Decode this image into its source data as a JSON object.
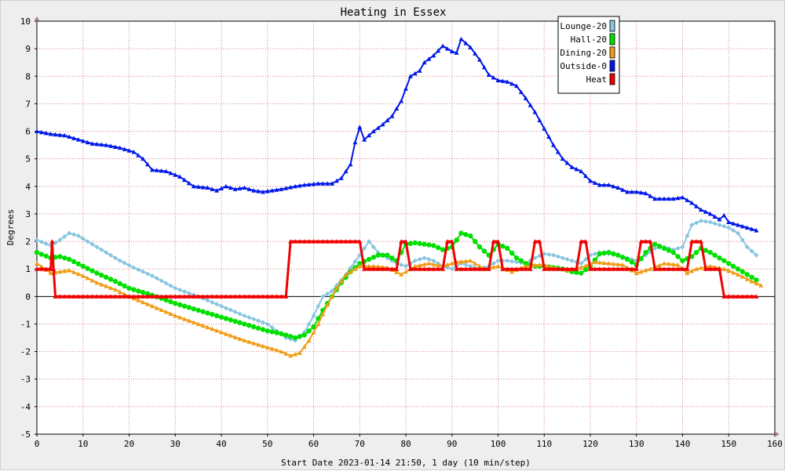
{
  "chart_data": {
    "type": "line",
    "title": "Heating in Essex",
    "xlabel": "Start Date 2023-01-14 21:50, 1 day (10 min/step)",
    "ylabel": "Degrees",
    "xlim": [
      0,
      160
    ],
    "ylim": [
      -5,
      10
    ],
    "x_ticks": [
      0,
      10,
      20,
      30,
      40,
      50,
      60,
      70,
      80,
      90,
      100,
      110,
      120,
      130,
      140,
      150,
      160
    ],
    "y_ticks": [
      -5,
      -4,
      -3,
      -2,
      -1,
      0,
      1,
      2,
      3,
      4,
      5,
      6,
      7,
      8,
      9,
      10
    ],
    "grid": true,
    "legend_position": "top-right",
    "series": [
      {
        "name": "Lounge-20",
        "color": "#87c5e0",
        "marker": "diamond",
        "points": [
          [
            0,
            2.05
          ],
          [
            3,
            1.85
          ],
          [
            5,
            2.05
          ],
          [
            7,
            2.3
          ],
          [
            9,
            2.2
          ],
          [
            12,
            1.9
          ],
          [
            15,
            1.6
          ],
          [
            18,
            1.3
          ],
          [
            21,
            1.05
          ],
          [
            25,
            0.75
          ],
          [
            30,
            0.3
          ],
          [
            35,
            0.0
          ],
          [
            40,
            -0.35
          ],
          [
            45,
            -0.7
          ],
          [
            50,
            -1.0
          ],
          [
            54,
            -1.5
          ],
          [
            56,
            -1.6
          ],
          [
            58,
            -1.3
          ],
          [
            60,
            -0.7
          ],
          [
            62,
            0.0
          ],
          [
            64,
            0.2
          ],
          [
            67,
            0.8
          ],
          [
            70,
            1.5
          ],
          [
            72,
            2.0
          ],
          [
            74,
            1.6
          ],
          [
            76,
            1.4
          ],
          [
            78,
            1.2
          ],
          [
            80,
            1.1
          ],
          [
            82,
            1.3
          ],
          [
            84,
            1.4
          ],
          [
            86,
            1.3
          ],
          [
            88,
            1.1
          ],
          [
            90,
            1.0
          ],
          [
            92,
            1.2
          ],
          [
            94,
            1.1
          ],
          [
            96,
            1.0
          ],
          [
            98,
            1.1
          ],
          [
            100,
            1.3
          ],
          [
            102,
            1.3
          ],
          [
            104,
            1.25
          ],
          [
            106,
            1.2
          ],
          [
            108,
            1.4
          ],
          [
            110,
            1.55
          ],
          [
            112,
            1.5
          ],
          [
            114,
            1.4
          ],
          [
            116,
            1.3
          ],
          [
            118,
            1.2
          ],
          [
            120,
            1.5
          ],
          [
            122,
            1.6
          ],
          [
            124,
            1.55
          ],
          [
            126,
            1.5
          ],
          [
            128,
            1.4
          ],
          [
            130,
            1.3
          ],
          [
            132,
            1.5
          ],
          [
            134,
            1.75
          ],
          [
            136,
            1.8
          ],
          [
            138,
            1.7
          ],
          [
            140,
            1.8
          ],
          [
            142,
            2.6
          ],
          [
            144,
            2.75
          ],
          [
            146,
            2.7
          ],
          [
            148,
            2.6
          ],
          [
            150,
            2.5
          ],
          [
            152,
            2.3
          ],
          [
            154,
            1.8
          ],
          [
            156,
            1.5
          ]
        ]
      },
      {
        "name": "Hall-20",
        "color": "#00e000",
        "marker": "circle",
        "points": [
          [
            0,
            1.6
          ],
          [
            3,
            1.4
          ],
          [
            5,
            1.45
          ],
          [
            7,
            1.35
          ],
          [
            10,
            1.1
          ],
          [
            13,
            0.85
          ],
          [
            17,
            0.55
          ],
          [
            20,
            0.3
          ],
          [
            25,
            0.05
          ],
          [
            30,
            -0.25
          ],
          [
            35,
            -0.5
          ],
          [
            40,
            -0.75
          ],
          [
            45,
            -1.0
          ],
          [
            50,
            -1.25
          ],
          [
            53,
            -1.35
          ],
          [
            56,
            -1.5
          ],
          [
            58,
            -1.4
          ],
          [
            60,
            -1.1
          ],
          [
            62,
            -0.5
          ],
          [
            64,
            0.0
          ],
          [
            66,
            0.5
          ],
          [
            68,
            0.9
          ],
          [
            70,
            1.2
          ],
          [
            72,
            1.35
          ],
          [
            74,
            1.5
          ],
          [
            76,
            1.5
          ],
          [
            78,
            1.3
          ],
          [
            80,
            1.9
          ],
          [
            82,
            1.95
          ],
          [
            84,
            1.9
          ],
          [
            86,
            1.85
          ],
          [
            88,
            1.7
          ],
          [
            90,
            1.8
          ],
          [
            92,
            2.3
          ],
          [
            94,
            2.2
          ],
          [
            96,
            1.8
          ],
          [
            98,
            1.5
          ],
          [
            100,
            1.9
          ],
          [
            102,
            1.75
          ],
          [
            104,
            1.4
          ],
          [
            106,
            1.2
          ],
          [
            108,
            1.1
          ],
          [
            110,
            1.1
          ],
          [
            112,
            1.05
          ],
          [
            114,
            1.0
          ],
          [
            116,
            0.9
          ],
          [
            118,
            0.85
          ],
          [
            120,
            1.1
          ],
          [
            122,
            1.55
          ],
          [
            124,
            1.6
          ],
          [
            126,
            1.5
          ],
          [
            128,
            1.35
          ],
          [
            130,
            1.15
          ],
          [
            132,
            1.6
          ],
          [
            134,
            1.9
          ],
          [
            136,
            1.75
          ],
          [
            138,
            1.6
          ],
          [
            140,
            1.3
          ],
          [
            142,
            1.45
          ],
          [
            144,
            1.75
          ],
          [
            146,
            1.6
          ],
          [
            148,
            1.4
          ],
          [
            150,
            1.2
          ],
          [
            152,
            1.0
          ],
          [
            154,
            0.8
          ],
          [
            156,
            0.6
          ]
        ]
      },
      {
        "name": "Dining-20",
        "color": "#f09c14",
        "marker": "triangle",
        "points": [
          [
            0,
            1.2
          ],
          [
            3,
            0.85
          ],
          [
            5,
            0.9
          ],
          [
            7,
            0.95
          ],
          [
            10,
            0.75
          ],
          [
            13,
            0.5
          ],
          [
            17,
            0.25
          ],
          [
            20,
            0.0
          ],
          [
            25,
            -0.35
          ],
          [
            30,
            -0.7
          ],
          [
            35,
            -1.0
          ],
          [
            40,
            -1.3
          ],
          [
            45,
            -1.6
          ],
          [
            50,
            -1.85
          ],
          [
            53,
            -2.0
          ],
          [
            55,
            -2.15
          ],
          [
            57,
            -2.05
          ],
          [
            59,
            -1.6
          ],
          [
            61,
            -1.0
          ],
          [
            63,
            -0.3
          ],
          [
            65,
            0.3
          ],
          [
            67,
            0.8
          ],
          [
            70,
            1.1
          ],
          [
            73,
            1.1
          ],
          [
            76,
            1.05
          ],
          [
            79,
            0.8
          ],
          [
            82,
            1.1
          ],
          [
            85,
            1.2
          ],
          [
            88,
            1.1
          ],
          [
            91,
            1.25
          ],
          [
            94,
            1.3
          ],
          [
            97,
            1.0
          ],
          [
            100,
            1.1
          ],
          [
            103,
            0.9
          ],
          [
            106,
            1.1
          ],
          [
            109,
            1.15
          ],
          [
            112,
            1.05
          ],
          [
            115,
            0.95
          ],
          [
            118,
            1.05
          ],
          [
            121,
            1.25
          ],
          [
            124,
            1.2
          ],
          [
            127,
            1.15
          ],
          [
            130,
            0.85
          ],
          [
            133,
            1.0
          ],
          [
            136,
            1.2
          ],
          [
            139,
            1.15
          ],
          [
            141,
            0.85
          ],
          [
            143,
            1.0
          ],
          [
            146,
            1.1
          ],
          [
            149,
            1.0
          ],
          [
            152,
            0.8
          ],
          [
            155,
            0.55
          ],
          [
            157,
            0.4
          ]
        ]
      },
      {
        "name": "Outside-0",
        "color": "#0018e8",
        "marker": "triangle",
        "points": [
          [
            0,
            6.0
          ],
          [
            3,
            5.9
          ],
          [
            6,
            5.85
          ],
          [
            9,
            5.7
          ],
          [
            12,
            5.55
          ],
          [
            15,
            5.5
          ],
          [
            18,
            5.4
          ],
          [
            21,
            5.25
          ],
          [
            23,
            5.0
          ],
          [
            25,
            4.6
          ],
          [
            28,
            4.55
          ],
          [
            31,
            4.35
          ],
          [
            34,
            4.0
          ],
          [
            37,
            3.95
          ],
          [
            39,
            3.85
          ],
          [
            41,
            4.0
          ],
          [
            43,
            3.9
          ],
          [
            45,
            3.95
          ],
          [
            47,
            3.85
          ],
          [
            49,
            3.8
          ],
          [
            51,
            3.85
          ],
          [
            53,
            3.9
          ],
          [
            56,
            4.0
          ],
          [
            58,
            4.05
          ],
          [
            61,
            4.1
          ],
          [
            64,
            4.1
          ],
          [
            66,
            4.3
          ],
          [
            68,
            4.8
          ],
          [
            69,
            5.6
          ],
          [
            70,
            6.15
          ],
          [
            71,
            5.7
          ],
          [
            73,
            6.0
          ],
          [
            75,
            6.25
          ],
          [
            77,
            6.55
          ],
          [
            79,
            7.1
          ],
          [
            81,
            8.0
          ],
          [
            83,
            8.2
          ],
          [
            84,
            8.5
          ],
          [
            86,
            8.75
          ],
          [
            88,
            9.1
          ],
          [
            90,
            8.9
          ],
          [
            91,
            8.85
          ],
          [
            92,
            9.35
          ],
          [
            94,
            9.05
          ],
          [
            96,
            8.6
          ],
          [
            98,
            8.05
          ],
          [
            100,
            7.85
          ],
          [
            102,
            7.8
          ],
          [
            104,
            7.65
          ],
          [
            106,
            7.2
          ],
          [
            108,
            6.7
          ],
          [
            110,
            6.1
          ],
          [
            112,
            5.5
          ],
          [
            114,
            5.0
          ],
          [
            116,
            4.7
          ],
          [
            118,
            4.55
          ],
          [
            120,
            4.2
          ],
          [
            122,
            4.05
          ],
          [
            124,
            4.05
          ],
          [
            126,
            3.95
          ],
          [
            128,
            3.8
          ],
          [
            130,
            3.8
          ],
          [
            132,
            3.75
          ],
          [
            134,
            3.55
          ],
          [
            136,
            3.55
          ],
          [
            138,
            3.55
          ],
          [
            140,
            3.6
          ],
          [
            142,
            3.4
          ],
          [
            144,
            3.15
          ],
          [
            146,
            3.0
          ],
          [
            148,
            2.8
          ],
          [
            149,
            2.95
          ],
          [
            150,
            2.7
          ],
          [
            152,
            2.6
          ],
          [
            154,
            2.5
          ],
          [
            156,
            2.4
          ]
        ]
      },
      {
        "name": "Heat",
        "color": "#f00000",
        "marker": "triangle",
        "points": [
          [
            0,
            1
          ],
          [
            3,
            1
          ],
          [
            3.3,
            2
          ],
          [
            3.6,
            1
          ],
          [
            4,
            0
          ],
          [
            54,
            0
          ],
          [
            55,
            2
          ],
          [
            70,
            2
          ],
          [
            71,
            1
          ],
          [
            78,
            1
          ],
          [
            79,
            2
          ],
          [
            80,
            2
          ],
          [
            81,
            1
          ],
          [
            88,
            1
          ],
          [
            89,
            2
          ],
          [
            90,
            2
          ],
          [
            91,
            1
          ],
          [
            98,
            1
          ],
          [
            99,
            2
          ],
          [
            100,
            2
          ],
          [
            101,
            1
          ],
          [
            107,
            1
          ],
          [
            108,
            2
          ],
          [
            109,
            2
          ],
          [
            110,
            1
          ],
          [
            117,
            1
          ],
          [
            118,
            2
          ],
          [
            119,
            2
          ],
          [
            120,
            1
          ],
          [
            130,
            1
          ],
          [
            131,
            2
          ],
          [
            133,
            2
          ],
          [
            134,
            1
          ],
          [
            141,
            1
          ],
          [
            142,
            2
          ],
          [
            144,
            2
          ],
          [
            145,
            1
          ],
          [
            148,
            1
          ],
          [
            149,
            0
          ],
          [
            156,
            0
          ]
        ]
      }
    ]
  }
}
